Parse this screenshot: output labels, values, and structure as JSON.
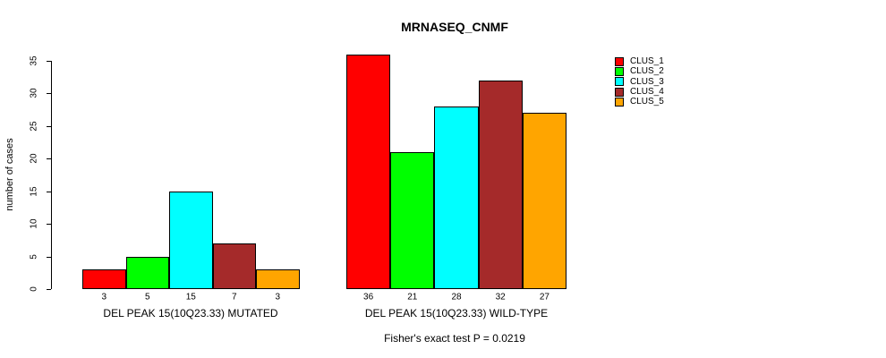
{
  "chart_data": {
    "type": "bar",
    "title": "MRNASEQ_CNMF",
    "ylabel": "number of cases",
    "xlabel": "",
    "ylim": [
      0,
      35
    ],
    "yticks": [
      0,
      5,
      10,
      15,
      20,
      25,
      30,
      35
    ],
    "grid": false,
    "legend_position": "right",
    "series": [
      "CLUS_1",
      "CLUS_2",
      "CLUS_3",
      "CLUS_4",
      "CLUS_5"
    ],
    "colors": [
      "#FF0000",
      "#00FF00",
      "#00FFFF",
      "#A52A2A",
      "#FFA500"
    ],
    "bar_border_color": "#000000",
    "groups": [
      {
        "label": "DEL PEAK 15(10Q23.33) MUTATED",
        "values": [
          3,
          5,
          15,
          7,
          3
        ]
      },
      {
        "label": "DEL PEAK 15(10Q23.33) WILD-TYPE",
        "values": [
          36,
          21,
          28,
          32,
          27
        ]
      }
    ],
    "bar_value_labels": true,
    "annotation": "Fisher's exact test P = 0.0219"
  },
  "legend": {
    "items": [
      {
        "label": "CLUS_1",
        "color": "#FF0000"
      },
      {
        "label": "CLUS_2",
        "color": "#00FF00"
      },
      {
        "label": "CLUS_3",
        "color": "#00FFFF"
      },
      {
        "label": "CLUS_4",
        "color": "#A52A2A"
      },
      {
        "label": "CLUS_5",
        "color": "#FFA500"
      }
    ]
  }
}
